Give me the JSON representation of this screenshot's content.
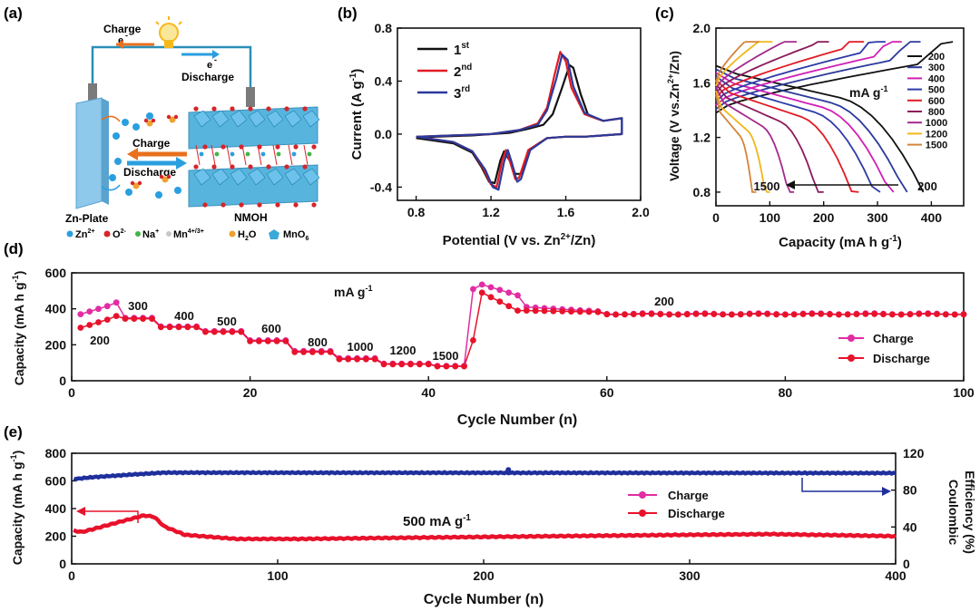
{
  "panel_labels": {
    "a": "(a)",
    "b": "(b)",
    "c": "(c)",
    "d": "(d)",
    "e": "(e)"
  },
  "schematic": {
    "charge_top": "Charge",
    "e_top": "e",
    "minus_top": "-",
    "e_right": "e",
    "minus_right": "-",
    "discharge_top": "Discharge",
    "charge_mid": "Charge",
    "discharge_mid": "Discharge",
    "zn_plate": "Zn-Plate",
    "nmoh": "NMOH",
    "legend": [
      "Zn",
      "O",
      "Na",
      "Mn",
      "H",
      "MnO"
    ],
    "legend_sup": [
      "2+",
      "2-",
      "+",
      "4+/3+",
      "",
      ""
    ],
    "legend_sub": [
      "",
      "",
      "",
      "",
      "2",
      "6"
    ],
    "legend_tail": [
      "",
      "",
      "",
      "",
      "O",
      ""
    ],
    "colors": {
      "zn": "#2a9fe0",
      "o": "#d6252a",
      "na": "#3fb54a",
      "mn": "#c8c8c8",
      "mno6": "#3aa8d8",
      "plate": "#8ec8ea",
      "arrow_charge": "#e8701e",
      "arrow_discharge": "#2a9fe0",
      "bulb": "#f6b81b"
    }
  },
  "chart_data": [
    {
      "id": "b",
      "type": "line",
      "xlabel": "Potential (V vs. Zn",
      "xlabel_sup": "2+",
      "xlabel_tail": "/Zn)",
      "ylabel": "Current (A g",
      "ylabel_sup": "-1",
      "ylabel_tail": ")",
      "xlim": [
        0.7,
        2.0
      ],
      "ylim": [
        -0.5,
        0.8
      ],
      "xticks": [
        "0.8",
        "1.2",
        "1.6",
        "2.0"
      ],
      "xtick_values": [
        0.8,
        1.2,
        1.6,
        2.0
      ],
      "yticks": [
        "-0.4",
        "0.0",
        "0.4",
        "0.8"
      ],
      "ytick_values": [
        -0.4,
        0.0,
        0.4,
        0.8
      ],
      "series": [
        {
          "name": "1",
          "sup": "st",
          "color": "#111111",
          "x": [
            0.8,
            1.0,
            1.1,
            1.15,
            1.19,
            1.22,
            1.25,
            1.27,
            1.3,
            1.33,
            1.36,
            1.4,
            1.5,
            1.6,
            1.7,
            1.8,
            1.9,
            1.9,
            1.8,
            1.72,
            1.68,
            1.64,
            1.62,
            1.58,
            1.53,
            1.48,
            1.4,
            1.3,
            1.1,
            0.9,
            0.8
          ],
          "y": [
            -0.03,
            -0.07,
            -0.14,
            -0.25,
            -0.36,
            -0.37,
            -0.2,
            -0.13,
            -0.2,
            -0.3,
            -0.3,
            -0.12,
            -0.03,
            -0.02,
            -0.02,
            -0.01,
            0.0,
            0.12,
            0.1,
            0.14,
            0.3,
            0.5,
            0.52,
            0.35,
            0.15,
            0.07,
            0.04,
            0.01,
            -0.01,
            -0.02,
            -0.03
          ]
        },
        {
          "name": "2",
          "sup": "nd",
          "color": "#e21b23",
          "x": [
            0.8,
            1.0,
            1.1,
            1.16,
            1.2,
            1.23,
            1.26,
            1.28,
            1.3,
            1.33,
            1.35,
            1.4,
            1.5,
            1.6,
            1.7,
            1.8,
            1.9,
            1.9,
            1.8,
            1.7,
            1.63,
            1.6,
            1.57,
            1.54,
            1.5,
            1.45,
            1.35,
            1.2,
            1.0,
            0.8
          ],
          "y": [
            -0.02,
            -0.06,
            -0.13,
            -0.26,
            -0.38,
            -0.4,
            -0.2,
            -0.12,
            -0.2,
            -0.34,
            -0.33,
            -0.12,
            -0.03,
            -0.02,
            -0.02,
            -0.01,
            0.0,
            0.12,
            0.1,
            0.15,
            0.35,
            0.55,
            0.62,
            0.45,
            0.2,
            0.08,
            0.03,
            0.0,
            -0.01,
            -0.02
          ]
        },
        {
          "name": "3",
          "sup": "rd",
          "color": "#2b3a9a",
          "x": [
            0.8,
            1.0,
            1.1,
            1.17,
            1.21,
            1.24,
            1.27,
            1.29,
            1.31,
            1.34,
            1.36,
            1.41,
            1.5,
            1.6,
            1.7,
            1.8,
            1.9,
            1.9,
            1.8,
            1.7,
            1.64,
            1.61,
            1.58,
            1.55,
            1.5,
            1.45,
            1.35,
            1.2,
            1.0,
            0.8
          ],
          "y": [
            -0.02,
            -0.06,
            -0.13,
            -0.27,
            -0.4,
            -0.42,
            -0.21,
            -0.12,
            -0.21,
            -0.36,
            -0.34,
            -0.12,
            -0.03,
            -0.02,
            -0.02,
            -0.01,
            0.0,
            0.12,
            0.1,
            0.16,
            0.36,
            0.56,
            0.6,
            0.42,
            0.18,
            0.07,
            0.03,
            0.0,
            -0.01,
            -0.02
          ]
        }
      ]
    },
    {
      "id": "c",
      "type": "line",
      "xlabel": "Capacity (mA h g",
      "xlabel_sup": "-1",
      "xlabel_tail": ")",
      "ylabel": "Voltage (V vs.Zn",
      "ylabel_sup": "2+",
      "ylabel_tail": "/Zn)",
      "xlim": [
        0,
        460
      ],
      "ylim": [
        0.7,
        2.0
      ],
      "xticks": [
        "0",
        "100",
        "200",
        "300",
        "400"
      ],
      "xtick_values": [
        0,
        100,
        200,
        300,
        400
      ],
      "yticks": [
        "0.8",
        "1.2",
        "1.6",
        "2.0"
      ],
      "ytick_values": [
        0.8,
        1.2,
        1.6,
        2.0
      ],
      "unit_label": "mA g",
      "unit_sup": "-1",
      "arrow_left": "1500",
      "arrow_right": "200",
      "rates": [
        "200",
        "300",
        "400",
        "500",
        "600",
        "800",
        "1000",
        "1200",
        "1500"
      ],
      "rate_colors": [
        "#111111",
        "#2b3a9a",
        "#d11fb4",
        "#2d3aa8",
        "#e21b23",
        "#8b1a5a",
        "#a52a8c",
        "#f0b71a",
        "#d4843b"
      ],
      "discharge_capacity": [
        385,
        355,
        330,
        305,
        265,
        200,
        145,
        100,
        75
      ],
      "charge_capacity": [
        440,
        380,
        345,
        315,
        275,
        210,
        150,
        105,
        80
      ]
    },
    {
      "id": "d",
      "type": "scatter",
      "xlabel": "Cycle Number (n)",
      "ylabel": "Capacity (mA h g",
      "ylabel_sup": "-1",
      "ylabel_tail": ")",
      "xlim": [
        0,
        100
      ],
      "ylim": [
        0,
        600
      ],
      "xticks": [
        "0",
        "20",
        "40",
        "60",
        "80",
        "100"
      ],
      "xtick_values": [
        0,
        20,
        40,
        60,
        80,
        100
      ],
      "yticks": [
        "0",
        "200",
        "400",
        "600"
      ],
      "ytick_values": [
        0,
        200,
        400,
        600
      ],
      "unit_label": "mA g",
      "unit_sup": "-1",
      "rate_labels": [
        "200",
        "300",
        "400",
        "500",
        "600",
        "800",
        "1000",
        "1200",
        "1500",
        "200"
      ],
      "segments": [
        {
          "rate": "200",
          "start": 1,
          "end": 5,
          "charge": 410,
          "discharge": 340
        },
        {
          "rate": "300",
          "start": 6,
          "end": 9,
          "charge": 350,
          "discharge": 345
        },
        {
          "rate": "400",
          "start": 10,
          "end": 14,
          "charge": 302,
          "discharge": 298
        },
        {
          "rate": "500",
          "start": 15,
          "end": 19,
          "charge": 276,
          "discharge": 272
        },
        {
          "rate": "600",
          "start": 20,
          "end": 24,
          "charge": 225,
          "discharge": 220
        },
        {
          "rate": "800",
          "start": 25,
          "end": 29,
          "charge": 165,
          "discharge": 160
        },
        {
          "rate": "1000",
          "start": 30,
          "end": 34,
          "charge": 125,
          "discharge": 120
        },
        {
          "rate": "1200",
          "start": 35,
          "end": 40,
          "charge": 95,
          "discharge": 92
        },
        {
          "rate": "1500",
          "start": 41,
          "end": 44,
          "charge": 82,
          "discharge": 80
        },
        {
          "rate": "200",
          "start": 45,
          "end": 100,
          "charge": 380,
          "discharge": 375
        }
      ],
      "series": [
        {
          "name": "Charge",
          "color": "#e22ca3"
        },
        {
          "name": "Discharge",
          "color": "#e8122b"
        }
      ]
    },
    {
      "id": "e",
      "type": "scatter",
      "xlabel": "Cycle Number (n)",
      "ylabel": "Capacity (mA h g",
      "ylabel_sup": "-1",
      "ylabel_tail": ")",
      "ylabel2": "Coulombic",
      "ylabel2b": "Efficiency (%)",
      "xlim": [
        0,
        400
      ],
      "ylim": [
        0,
        800
      ],
      "ylim2": [
        0,
        120
      ],
      "xticks": [
        "0",
        "100",
        "200",
        "300",
        "400"
      ],
      "xtick_values": [
        0,
        100,
        200,
        300,
        400
      ],
      "yticks": [
        "0",
        "200",
        "400",
        "600",
        "800"
      ],
      "ytick_values": [
        0,
        200,
        400,
        600,
        800
      ],
      "yticks2": [
        "0",
        "40",
        "80",
        "120"
      ],
      "ytick2_values": [
        0,
        40,
        80,
        120
      ],
      "rate_label": "500 mA g",
      "rate_sup": "-1",
      "capacity_profile": {
        "x": [
          1,
          5,
          15,
          25,
          35,
          40,
          45,
          55,
          80,
          110,
          200,
          300,
          340,
          400
        ],
        "y": [
          240,
          230,
          270,
          310,
          350,
          340,
          270,
          210,
          180,
          180,
          195,
          210,
          215,
          200
        ]
      },
      "efficiency_profile": {
        "x": [
          1,
          10,
          30,
          45,
          400
        ],
        "y": [
          92,
          94,
          97,
          99,
          98.5
        ]
      },
      "series": [
        {
          "name": "Charge",
          "color": "#e22ca3"
        },
        {
          "name": "Discharge",
          "color": "#e8122b"
        },
        {
          "name": "Coulombic Efficiency",
          "color": "#1f2f9c"
        }
      ]
    }
  ]
}
